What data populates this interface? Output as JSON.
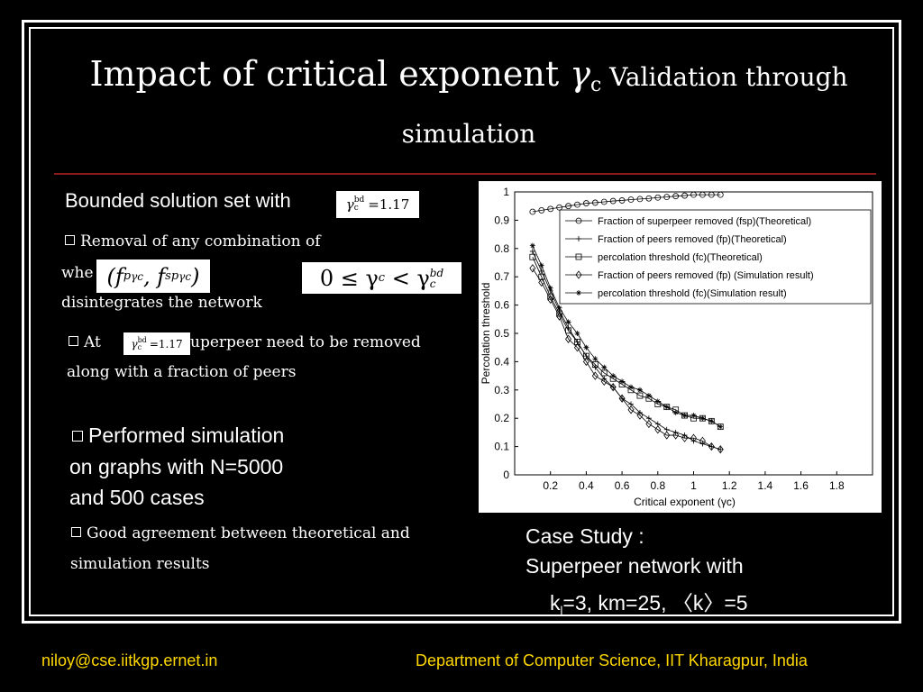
{
  "title": {
    "main": "Impact of critical exponent ",
    "gamma": "γ",
    "sub": "c",
    "rest": " Validation through",
    "line2": "simulation"
  },
  "left": {
    "bounded_label": "Bounded solution set with",
    "bounded_formula": "γ",
    "bounded_formula_sup": "bd",
    "bounded_formula_sub": "c",
    "bounded_formula_val": "=1.17",
    "b1_line1": "Removal of any combination of",
    "b1_line2_prefix": "whe",
    "b1_formula": "(f",
    "b1_condition": "0 ≤ γ",
    "b1_line3": "disintegrates the network",
    "b2_prefix": "At",
    "b2_suffix": "uperpeer need to be removed",
    "b2_line2": "along with a fraction of peers",
    "b3_line1": "Performed simulation",
    "b3_line2": "on graphs with N=5000",
    "b3_line3": "and 500 cases",
    "b4_line1": "Good agreement between theoretical and",
    "b4_line2": "simulation results"
  },
  "caption": {
    "line1": "Case Study :",
    "line2": "Superpeer network with",
    "line3": "k",
    "line3_sub": "l",
    "line3_rest": "=3, km=25, 〈k〉=5"
  },
  "footer": {
    "email": "niloy@cse.iitkgp.ernet.in",
    "dept": "Department of Computer Science, IIT Kharagpur, India"
  },
  "chart_data": {
    "type": "line",
    "xlabel": "Critical exponent (γc)",
    "ylabel": "Percolation threshold",
    "xlim": [
      0,
      2.0
    ],
    "ylim": [
      0,
      1
    ],
    "xticks": [
      0.2,
      0.4,
      0.6,
      0.8,
      1,
      1.2,
      1.4,
      1.6,
      1.8
    ],
    "yticks": [
      0,
      0.1,
      0.2,
      0.3,
      0.4,
      0.5,
      0.6,
      0.7,
      0.8,
      0.9,
      1
    ],
    "legend_position": "upper-right",
    "series": [
      {
        "name": "Fraction of superpeer removed (fsp)(Theoretical)",
        "marker": "circle",
        "x": [
          0.1,
          0.15,
          0.2,
          0.25,
          0.3,
          0.35,
          0.4,
          0.45,
          0.5,
          0.55,
          0.6,
          0.65,
          0.7,
          0.75,
          0.8,
          0.85,
          0.9,
          0.95,
          1.0,
          1.05,
          1.1,
          1.15
        ],
        "y": [
          0.93,
          0.935,
          0.94,
          0.945,
          0.95,
          0.955,
          0.96,
          0.962,
          0.965,
          0.968,
          0.97,
          0.973,
          0.975,
          0.977,
          0.98,
          0.982,
          0.985,
          0.987,
          0.99,
          0.99,
          0.99,
          0.99
        ]
      },
      {
        "name": "Fraction of peers removed (fp)(Theoretical)",
        "marker": "plus",
        "x": [
          0.1,
          0.15,
          0.2,
          0.25,
          0.3,
          0.35,
          0.4,
          0.45,
          0.5,
          0.55,
          0.6,
          0.65,
          0.7,
          0.75,
          0.8,
          0.85,
          0.9,
          0.95,
          1.0,
          1.05,
          1.1,
          1.15
        ],
        "y": [
          0.79,
          0.72,
          0.65,
          0.58,
          0.52,
          0.47,
          0.42,
          0.38,
          0.34,
          0.31,
          0.27,
          0.25,
          0.22,
          0.2,
          0.18,
          0.16,
          0.15,
          0.14,
          0.12,
          0.11,
          0.1,
          0.09
        ]
      },
      {
        "name": "percolation threshold (fc)(Theoretical)",
        "marker": "square",
        "x": [
          0.1,
          0.15,
          0.2,
          0.25,
          0.3,
          0.35,
          0.4,
          0.45,
          0.5,
          0.55,
          0.6,
          0.65,
          0.7,
          0.75,
          0.8,
          0.85,
          0.9,
          0.95,
          1.0,
          1.05,
          1.1,
          1.15
        ],
        "y": [
          0.77,
          0.7,
          0.63,
          0.57,
          0.51,
          0.47,
          0.42,
          0.39,
          0.36,
          0.34,
          0.32,
          0.3,
          0.28,
          0.27,
          0.25,
          0.24,
          0.23,
          0.21,
          0.2,
          0.2,
          0.19,
          0.17
        ]
      },
      {
        "name": "Fraction of peers removed (fp) (Simulation result)",
        "marker": "diamond",
        "x": [
          0.1,
          0.15,
          0.2,
          0.25,
          0.3,
          0.35,
          0.4,
          0.45,
          0.5,
          0.55,
          0.6,
          0.65,
          0.7,
          0.75,
          0.8,
          0.85,
          0.9,
          0.95,
          1.0,
          1.05,
          1.1,
          1.15
        ],
        "y": [
          0.73,
          0.68,
          0.62,
          0.56,
          0.48,
          0.45,
          0.4,
          0.35,
          0.33,
          0.31,
          0.27,
          0.23,
          0.21,
          0.18,
          0.16,
          0.14,
          0.14,
          0.13,
          0.13,
          0.12,
          0.1,
          0.09
        ]
      },
      {
        "name": "percolation threshold (fc)(Simulation result)",
        "marker": "star",
        "x": [
          0.1,
          0.15,
          0.2,
          0.25,
          0.3,
          0.35,
          0.4,
          0.45,
          0.5,
          0.55,
          0.6,
          0.65,
          0.7,
          0.75,
          0.8,
          0.85,
          0.9,
          0.95,
          1.0,
          1.05,
          1.1,
          1.15
        ],
        "y": [
          0.81,
          0.74,
          0.66,
          0.59,
          0.54,
          0.5,
          0.45,
          0.41,
          0.38,
          0.35,
          0.33,
          0.31,
          0.3,
          0.28,
          0.26,
          0.24,
          0.22,
          0.21,
          0.21,
          0.2,
          0.19,
          0.17
        ]
      }
    ]
  }
}
